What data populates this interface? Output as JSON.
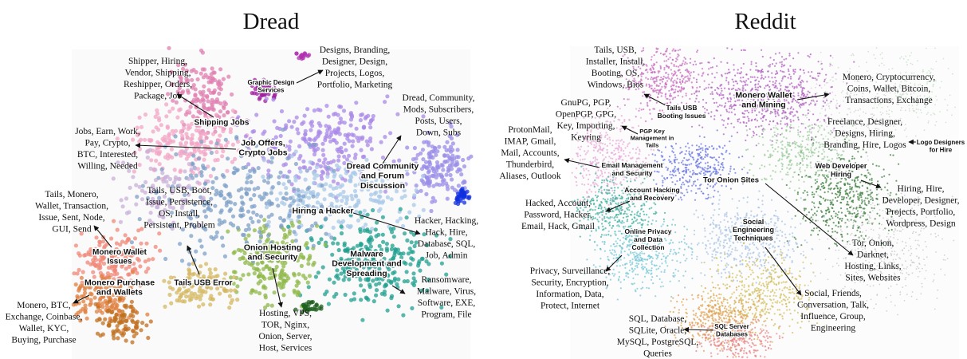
{
  "panels": [
    {
      "title": "Dread",
      "clusters": [
        {
          "label": [
            "Graphic Design",
            "Services"
          ],
          "keywords": [
            "Designs, Branding,",
            "Designer, Design,",
            "Projects, Logos,",
            "Portfolio, Marketing"
          ]
        },
        {
          "label": [
            "Shipping Jobs"
          ],
          "keywords": [
            "Shipper, Hiring,",
            "Vendor, Shipping,",
            "Reshipper, Orders,",
            "Package, Job"
          ]
        },
        {
          "label": [
            "Job Offers,",
            "Crypto Jobs"
          ],
          "keywords": [
            "Jobs, Earn, Work,",
            "Pay, Crypto,",
            "BTC, Interested,",
            "Willing, Needed"
          ]
        },
        {
          "label": [
            "Dread Community",
            "and Forum",
            "Discussion"
          ],
          "keywords": [
            "Dread, Community,",
            "Mods, Subscribers,",
            "Posts, Users,",
            "Down, Subs"
          ]
        },
        {
          "label": [
            "Hiring a Hacker"
          ],
          "keywords": [
            "Hacker, Hacking,",
            "Hack, Hire,",
            "Database, SQL,",
            "Job, Admin"
          ]
        },
        {
          "label": [
            "Tails USB Error"
          ],
          "keywords": [
            "Tails, USB, Boot,",
            "Issue, Persistence,",
            "OS, Install,",
            "Persistent, Problem"
          ]
        },
        {
          "label": [
            "Monero Wallet",
            "Issues"
          ],
          "keywords": [
            "Tails, Monero,",
            "Wallet, Transaction,",
            "Issue, Sent, Node,",
            "GUI, Send"
          ]
        },
        {
          "label": [
            "Onion Hosting",
            "and Security"
          ],
          "keywords": [
            "Hosting, VPS,",
            "TOR, Nginx,",
            "Onion, Server,",
            "Host, Services"
          ]
        },
        {
          "label": [
            "Malware",
            "Development and",
            "Spreading"
          ],
          "keywords": [
            "Ransomware,",
            "Malware, Virus,",
            "Software, EXE,",
            "Program, File"
          ]
        },
        {
          "label": [
            "Monero Purchase",
            "and Wallets"
          ],
          "keywords": [
            "Monero, BTC,",
            "Exchange, Coinbase,",
            "Wallet, KYC,",
            "Buying, Purchase"
          ]
        }
      ]
    },
    {
      "title": "Reddit",
      "clusters": [
        {
          "label": [
            "Tails USB",
            "Booting Issues"
          ],
          "keywords": [
            "Tails, USB,",
            "Installer, Install,",
            "Booting, OS,",
            "Windows, Bios"
          ]
        },
        {
          "label": [
            "Monero Wallet",
            "and Mining"
          ],
          "keywords": [
            "Monero, Cryptocurrency,",
            "Coins, Wallet, Bitcoin,",
            "Transactions, Exchange"
          ]
        },
        {
          "label": [
            "PGP Key",
            "Management in",
            "Tails"
          ],
          "keywords": [
            "GnuPG, PGP,",
            "OpenPGP, GPG,",
            "Key, Importing,",
            "Keyring"
          ]
        },
        {
          "label": [
            "Logo Designers",
            "for Hire"
          ],
          "keywords": [
            "Freelance, Designer,",
            "Designs, Hiring,",
            "Branding, Hire, Logos"
          ]
        },
        {
          "label": [
            "Email Management",
            "and Security"
          ],
          "keywords": [
            "ProtonMail,",
            "IMAP, Gmail,",
            "Mail, Accounts,",
            "Thunderbird,",
            "Aliases, Outlook"
          ]
        },
        {
          "label": [
            "Web Developer",
            "Hiring"
          ],
          "keywords": [
            "Hiring, Hire,",
            "Developer, Designer,",
            "Projects, Portfolio,",
            "Wordpress, Design"
          ]
        },
        {
          "label": [
            "Tor Onion Sites"
          ],
          "keywords": [
            "Tor, Onion,",
            "Darknet,",
            "Hosting, Links,",
            "Sites, Websites"
          ]
        },
        {
          "label": [
            "Account Hacking",
            "and Recovery"
          ],
          "keywords": [
            "Hacked, Account,",
            "Password, Hacker,",
            "Email, Hack, Gmail"
          ]
        },
        {
          "label": [
            "Social",
            "Engineering",
            "Techniques"
          ],
          "keywords": [
            "Social, Friends,",
            "Conversation, Talk,",
            "Influence, Group,",
            "Engineering"
          ]
        },
        {
          "label": [
            "Online Privacy",
            "and Data",
            "Collection"
          ],
          "keywords": [
            "Privacy, Surveillance,",
            "Security, Encryption,",
            "Information, Data,",
            "Protect, Internet"
          ]
        },
        {
          "label": [
            "SQL Server",
            "Databases"
          ],
          "keywords": [
            "SQL, Database,",
            "SQLite, Oracle,",
            "MySQL, PostgreSQL,",
            "Queries"
          ]
        }
      ]
    }
  ]
}
